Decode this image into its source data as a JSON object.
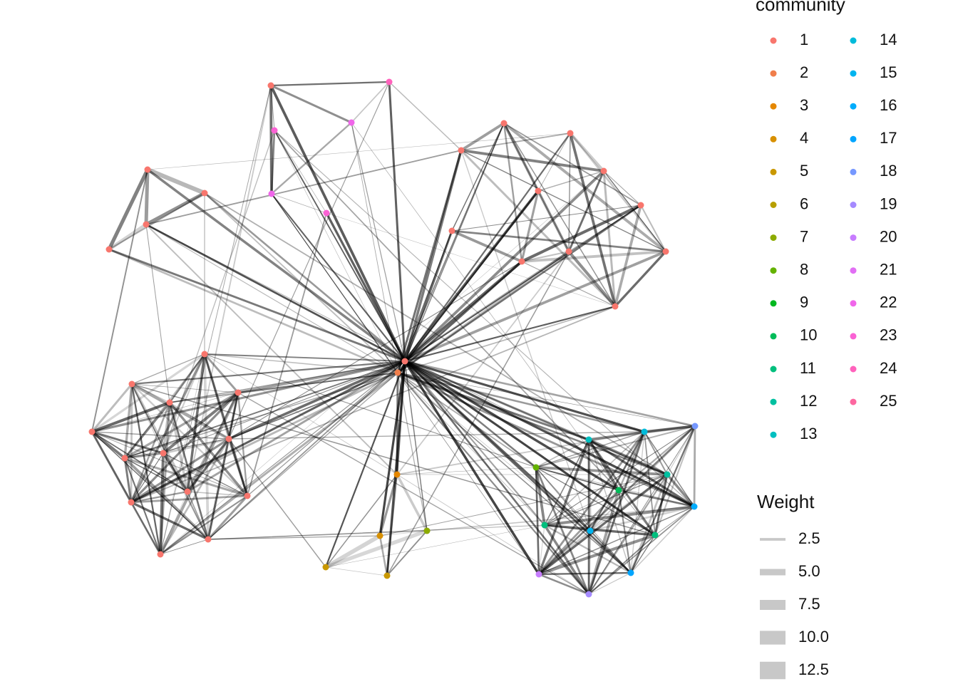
{
  "legends": {
    "community": {
      "title": "community",
      "items": [
        {
          "label": "1",
          "color": "#F8766D"
        },
        {
          "label": "2",
          "color": "#F07E4B"
        },
        {
          "label": "3",
          "color": "#E58700"
        },
        {
          "label": "4",
          "color": "#D89000"
        },
        {
          "label": "5",
          "color": "#C99800"
        },
        {
          "label": "6",
          "color": "#B79F00"
        },
        {
          "label": "7",
          "color": "#8CAB00"
        },
        {
          "label": "8",
          "color": "#64B200"
        },
        {
          "label": "9",
          "color": "#00B81F"
        },
        {
          "label": "10",
          "color": "#00BC59"
        },
        {
          "label": "11",
          "color": "#00BF7D"
        },
        {
          "label": "12",
          "color": "#00C0A0"
        },
        {
          "label": "13",
          "color": "#00BFC0"
        },
        {
          "label": "14",
          "color": "#00BBDA"
        },
        {
          "label": "15",
          "color": "#00B4EF"
        },
        {
          "label": "16",
          "color": "#00ACFC"
        },
        {
          "label": "17",
          "color": "#00A5FF"
        },
        {
          "label": "18",
          "color": "#7698FF"
        },
        {
          "label": "19",
          "color": "#A58AFF"
        },
        {
          "label": "20",
          "color": "#C77CFF"
        },
        {
          "label": "21",
          "color": "#E16FF4"
        },
        {
          "label": "22",
          "color": "#F066EA"
        },
        {
          "label": "23",
          "color": "#FA62D4"
        },
        {
          "label": "24",
          "color": "#FF62BC"
        },
        {
          "label": "25",
          "color": "#FD67A0"
        }
      ]
    },
    "weight": {
      "title": "Weight",
      "items": [
        {
          "value": 2.5,
          "label": "2.5"
        },
        {
          "value": 5,
          "label": "5.0"
        },
        {
          "value": 7.5,
          "label": "7.5"
        },
        {
          "value": 10,
          "label": "10.0"
        },
        {
          "value": 12.5,
          "label": "12.5"
        }
      ]
    }
  }
}
